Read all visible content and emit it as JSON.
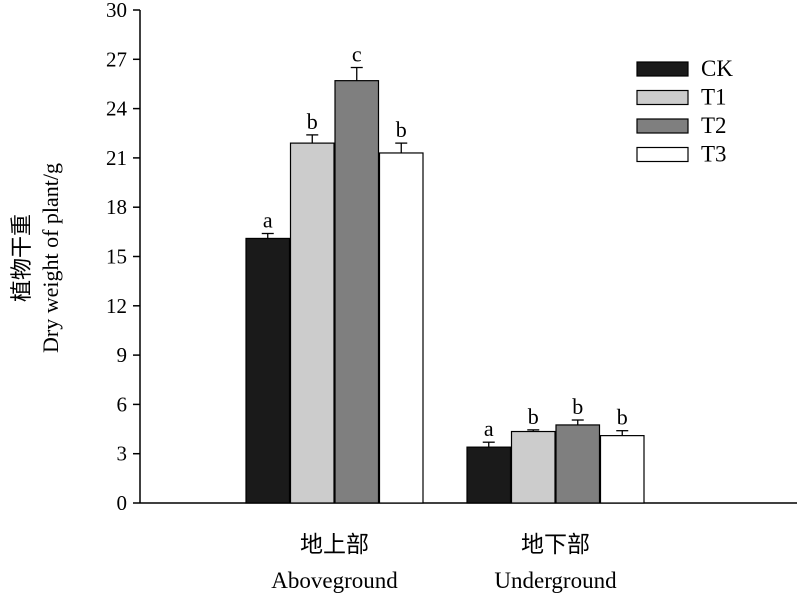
{
  "chart_data": {
    "type": "bar",
    "categories": [
      {
        "zh": "地上部",
        "en": "Aboveground"
      },
      {
        "zh": "地下部",
        "en": "Underground"
      }
    ],
    "series": [
      {
        "name": "CK",
        "color": "#1a1a1a",
        "values": [
          16.1,
          3.4
        ],
        "errors": [
          0.3,
          0.3
        ],
        "letters": [
          "a",
          "a"
        ]
      },
      {
        "name": "T1",
        "color": "#cccccc",
        "values": [
          21.9,
          4.35
        ],
        "errors": [
          0.5,
          0.1
        ],
        "letters": [
          "b",
          "b"
        ]
      },
      {
        "name": "T2",
        "color": "#7f7f7f",
        "values": [
          25.7,
          4.75
        ],
        "errors": [
          0.8,
          0.3
        ],
        "letters": [
          "c",
          "b"
        ]
      },
      {
        "name": "T3",
        "color": "#ffffff",
        "values": [
          21.3,
          4.1
        ],
        "errors": [
          0.6,
          0.3
        ],
        "letters": [
          "b",
          "b"
        ]
      }
    ],
    "ylabel_zh": "植物干重",
    "ylabel_en": "Dry weight of plant/g",
    "xlabel": "",
    "title": "",
    "ylim": [
      0,
      30
    ],
    "yticks": [
      0,
      3,
      6,
      9,
      12,
      15,
      18,
      21,
      24,
      27,
      30
    ],
    "legend_position": "top-right",
    "grid": false
  }
}
